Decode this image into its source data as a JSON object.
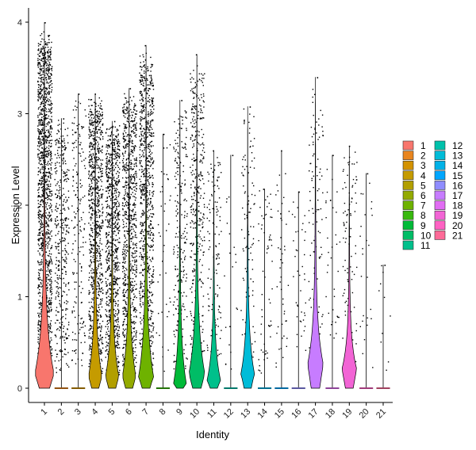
{
  "chart_data": {
    "type": "violin",
    "title": "",
    "xlabel": "Identity",
    "ylabel": "Expression Level",
    "ylim": [
      -0.2,
      4.2
    ],
    "yticks": [
      0,
      1,
      2,
      3,
      4
    ],
    "categories": [
      "1",
      "2",
      "3",
      "4",
      "5",
      "6",
      "7",
      "8",
      "9",
      "10",
      "11",
      "12",
      "13",
      "14",
      "15",
      "16",
      "17",
      "18",
      "19",
      "20",
      "21"
    ],
    "colors": [
      "#F8766D",
      "#E8851E",
      "#D39200",
      "#C59B00",
      "#B29F00",
      "#93AA00",
      "#6EB200",
      "#38B90E",
      "#00BA38",
      "#00BD66",
      "#00C08B",
      "#00C1AB",
      "#00BCD8",
      "#00B2E8",
      "#00A6FF",
      "#8F8CFF",
      "#C77CFF",
      "#E16CF3",
      "#F264D5",
      "#FF61C3",
      "#FF6A98"
    ],
    "max_expression": [
      4.0,
      2.95,
      3.22,
      3.22,
      2.92,
      3.28,
      3.75,
      2.78,
      3.15,
      3.65,
      2.6,
      2.55,
      3.08,
      2.18,
      2.6,
      2.15,
      3.4,
      2.55,
      2.65,
      2.35,
      1.35
    ],
    "violin_width": [
      0.55,
      0.0,
      0.0,
      0.38,
      0.38,
      0.38,
      0.42,
      0.0,
      0.35,
      0.45,
      0.38,
      0.0,
      0.38,
      0.0,
      0.0,
      0.0,
      0.45,
      0.0,
      0.42,
      0.0,
      0.0
    ],
    "violin_peak": [
      0.15,
      0.0,
      0.0,
      0.12,
      0.12,
      0.12,
      0.12,
      0.0,
      0.05,
      0.15,
      0.08,
      0.0,
      0.15,
      0.0,
      0.0,
      0.0,
      0.25,
      0.0,
      0.2,
      0.0,
      0.0
    ],
    "point_density": [
      1400,
      380,
      180,
      900,
      850,
      850,
      850,
      40,
      220,
      380,
      130,
      20,
      110,
      60,
      45,
      40,
      100,
      35,
      90,
      25,
      10
    ],
    "jitter": 0.42,
    "show_points": true,
    "grid": false,
    "legend": {
      "position": "right",
      "columns": 2
    },
    "legend_labels": [
      "1",
      "2",
      "3",
      "4",
      "5",
      "6",
      "7",
      "8",
      "9",
      "10",
      "11",
      "12",
      "13",
      "14",
      "15",
      "16",
      "17",
      "18",
      "19",
      "20",
      "21"
    ]
  }
}
